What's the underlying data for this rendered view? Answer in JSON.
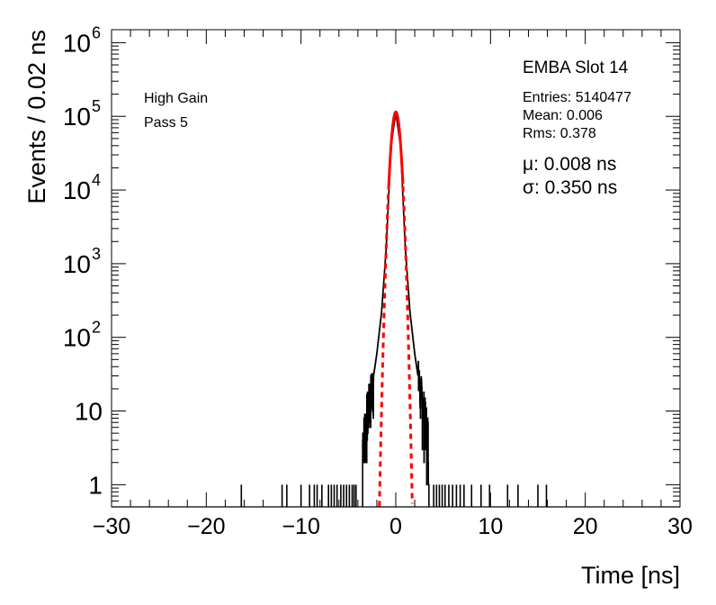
{
  "chart_data": {
    "type": "histogram",
    "title": "EMBA Slot 14",
    "xlabel": "Time [ns]",
    "ylabel": "Events / 0.02 ns",
    "xlim": [
      -30,
      30
    ],
    "ylim": [
      0.5,
      1500000
    ],
    "yscale": "log",
    "grid": false,
    "x_ticks": [
      -30,
      -20,
      -10,
      0,
      10,
      20,
      30
    ],
    "x_tick_labels": [
      "−30",
      "−20",
      "−10",
      "0",
      "10",
      "20",
      "30"
    ],
    "y_ticks": [
      1,
      10,
      100,
      1000,
      10000,
      100000,
      1000000
    ],
    "y_tick_labels": [
      {
        "base": "1",
        "exp": ""
      },
      {
        "base": "10",
        "exp": ""
      },
      {
        "base": "10",
        "exp": "2"
      },
      {
        "base": "10",
        "exp": "3"
      },
      {
        "base": "10",
        "exp": "4"
      },
      {
        "base": "10",
        "exp": "5"
      },
      {
        "base": "10",
        "exp": "6"
      }
    ],
    "annotations": {
      "gain": "High Gain",
      "pass": "Pass 5",
      "entries": "Entries: 5140477",
      "mean": "Mean: 0.006",
      "rms": "Rms: 0.378",
      "mu": "μ: 0.008 ns",
      "sigma": "σ: 0.350 ns"
    },
    "fit": {
      "function": "gaussian",
      "mu": 0.008,
      "sigma": 0.35,
      "amplitude": 115000,
      "color": "#ff0000",
      "style": "dashed"
    },
    "core": {
      "x": [
        -3.5,
        -3.0,
        -2.5,
        -2.0,
        -1.5,
        -1.0,
        -0.5,
        0.0,
        0.5,
        1.0,
        1.5,
        2.0,
        2.5,
        3.0,
        3.5
      ],
      "y": [
        4,
        10,
        22,
        60,
        220,
        1700,
        40000,
        115000,
        40000,
        1700,
        220,
        60,
        22,
        10,
        4
      ]
    },
    "tail_entries": [
      -16.3,
      -12.0,
      -11.5,
      -10.0,
      -9.1,
      -8.6,
      -8.3,
      -7.8,
      -7.1,
      -6.8,
      -6.5,
      -6.2,
      -5.8,
      -5.5,
      -5.2,
      -4.9,
      -4.6,
      -4.4,
      -4.2,
      4.0,
      4.3,
      4.6,
      4.9,
      5.2,
      5.6,
      6.0,
      6.4,
      6.8,
      7.2,
      8.0,
      9.0,
      9.9,
      11.8,
      12.9,
      15.0,
      15.9
    ],
    "line_color": "#000000",
    "fit_color": "#ff0000"
  }
}
